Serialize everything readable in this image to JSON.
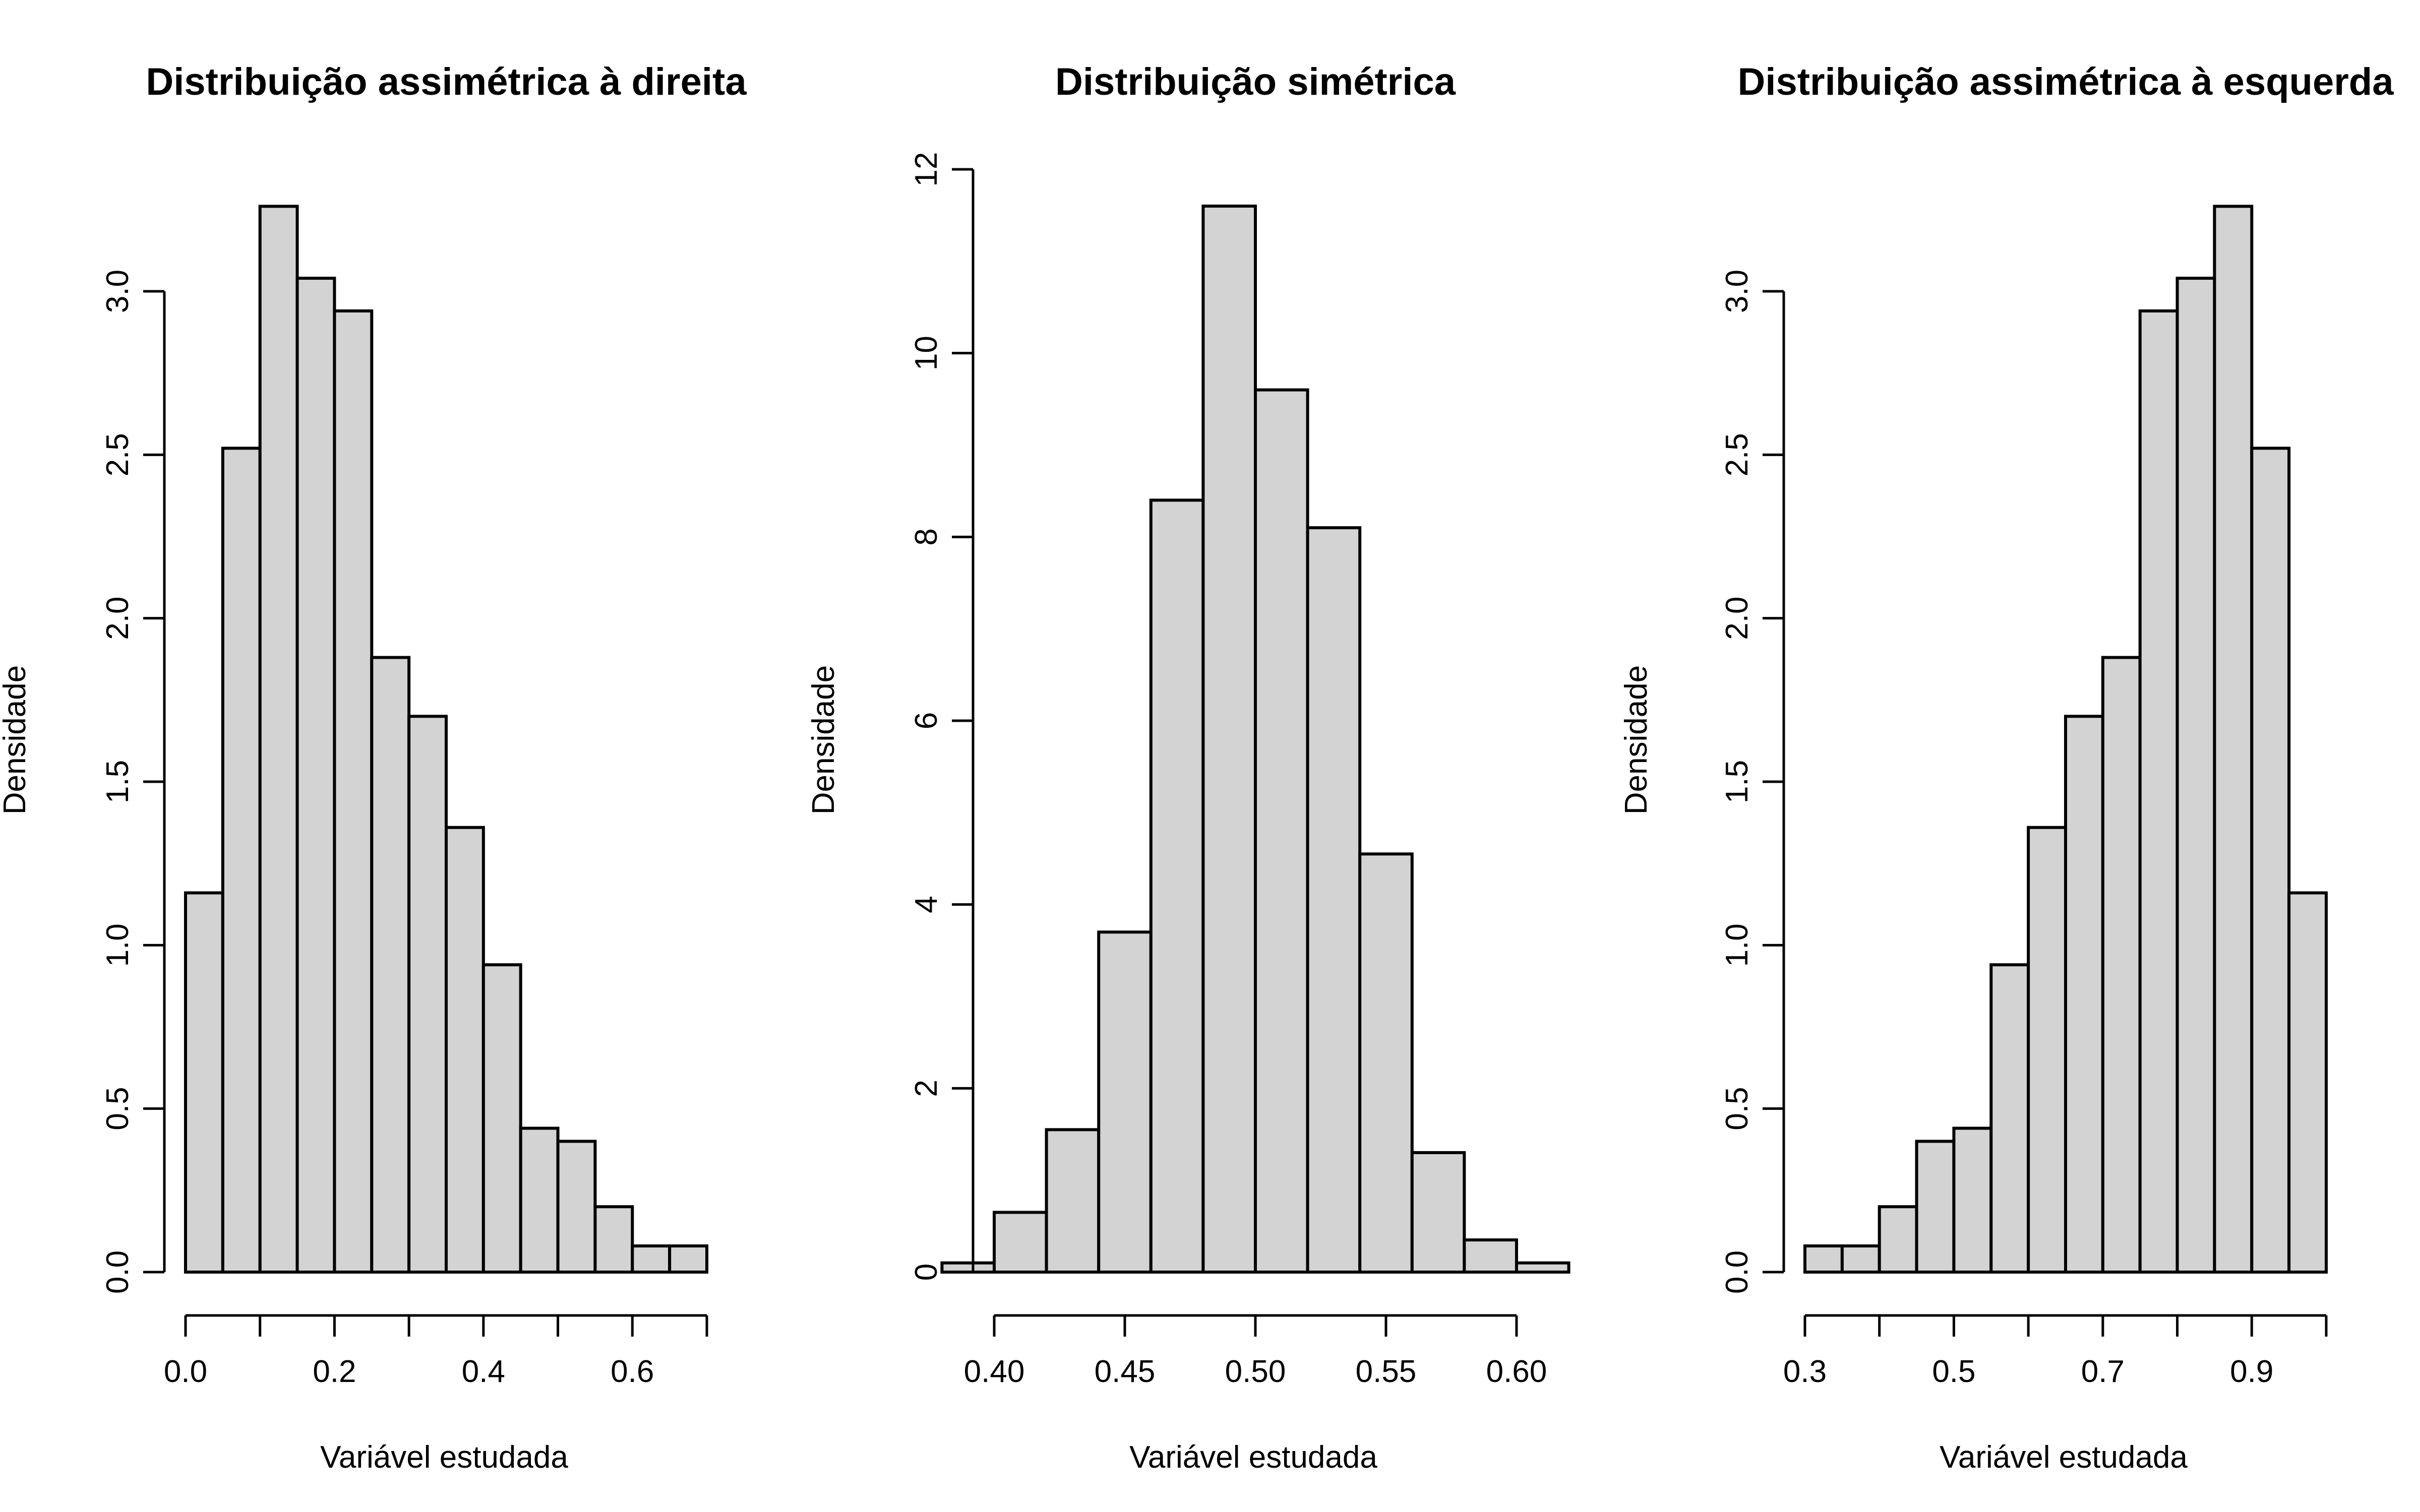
{
  "chart_data": [
    {
      "type": "bar",
      "title": "Distribuição assimétrica à direita",
      "xlabel": "Variável estudada",
      "ylabel": "Densidade",
      "bin_edges": [
        0.0,
        0.05,
        0.1,
        0.15,
        0.2,
        0.25,
        0.3,
        0.35,
        0.4,
        0.45,
        0.5,
        0.55,
        0.6,
        0.65,
        0.7
      ],
      "values": [
        1.16,
        2.52,
        3.26,
        3.04,
        2.94,
        1.88,
        1.7,
        1.36,
        0.94,
        0.44,
        0.4,
        0.2,
        0.08,
        0.08
      ],
      "xlim": [
        0.0,
        0.7
      ],
      "ylim": [
        0,
        3.0
      ],
      "x_ticks": [
        0.0,
        0.1,
        0.2,
        0.3,
        0.4,
        0.5,
        0.6,
        0.7
      ],
      "x_tick_labels": [
        "0.0",
        "",
        "0.2",
        "",
        "0.4",
        "",
        "0.6",
        ""
      ],
      "y_ticks": [
        0.0,
        0.5,
        1.0,
        1.5,
        2.0,
        2.5,
        3.0
      ],
      "y_tick_labels": [
        "0.0",
        "0.5",
        "1.0",
        "1.5",
        "2.0",
        "2.5",
        "3.0"
      ],
      "grid": false,
      "bar_color": "#d3d3d3",
      "edge_color": "#000000"
    },
    {
      "type": "bar",
      "title": "Distribuição simétrica",
      "xlabel": "Variável estudada",
      "ylabel": "Densidade",
      "bin_edges": [
        0.38,
        0.4,
        0.42,
        0.44,
        0.46,
        0.48,
        0.5,
        0.52,
        0.54,
        0.56,
        0.58,
        0.6,
        0.62
      ],
      "values": [
        0.1,
        0.65,
        1.55,
        3.7,
        8.4,
        11.6,
        9.6,
        8.1,
        4.55,
        1.3,
        0.35,
        0.1
      ],
      "xlim": [
        0.4,
        0.6
      ],
      "ylim": [
        0,
        12
      ],
      "x_ticks": [
        0.4,
        0.45,
        0.5,
        0.55,
        0.6
      ],
      "x_tick_labels": [
        "0.40",
        "0.45",
        "0.50",
        "0.55",
        "0.60"
      ],
      "y_ticks": [
        0,
        2,
        4,
        6,
        8,
        10,
        12
      ],
      "y_tick_labels": [
        "0",
        "2",
        "4",
        "6",
        "8",
        "10",
        "12"
      ],
      "grid": false,
      "bar_color": "#d3d3d3",
      "edge_color": "#000000"
    },
    {
      "type": "bar",
      "title": "Distribuição assimétrica à esquerda",
      "xlabel": "Variável estudada",
      "ylabel": "Densidade",
      "bin_edges": [
        0.3,
        0.35,
        0.4,
        0.45,
        0.5,
        0.55,
        0.6,
        0.65,
        0.7,
        0.75,
        0.8,
        0.85,
        0.9,
        0.95,
        1.0
      ],
      "values": [
        0.08,
        0.08,
        0.2,
        0.4,
        0.44,
        0.94,
        1.36,
        1.7,
        1.88,
        2.94,
        3.04,
        3.26,
        2.52,
        1.16
      ],
      "xlim": [
        0.3,
        1.0
      ],
      "ylim": [
        0,
        3.0
      ],
      "x_ticks": [
        0.3,
        0.4,
        0.5,
        0.6,
        0.7,
        0.8,
        0.9,
        1.0
      ],
      "x_tick_labels": [
        "0.3",
        "",
        "0.5",
        "",
        "0.7",
        "",
        "0.9",
        ""
      ],
      "y_ticks": [
        0.0,
        0.5,
        1.0,
        1.5,
        2.0,
        2.5,
        3.0
      ],
      "y_tick_labels": [
        "0.0",
        "0.5",
        "1.0",
        "1.5",
        "2.0",
        "2.5",
        "3.0"
      ],
      "grid": false,
      "bar_color": "#d3d3d3",
      "edge_color": "#000000"
    }
  ]
}
